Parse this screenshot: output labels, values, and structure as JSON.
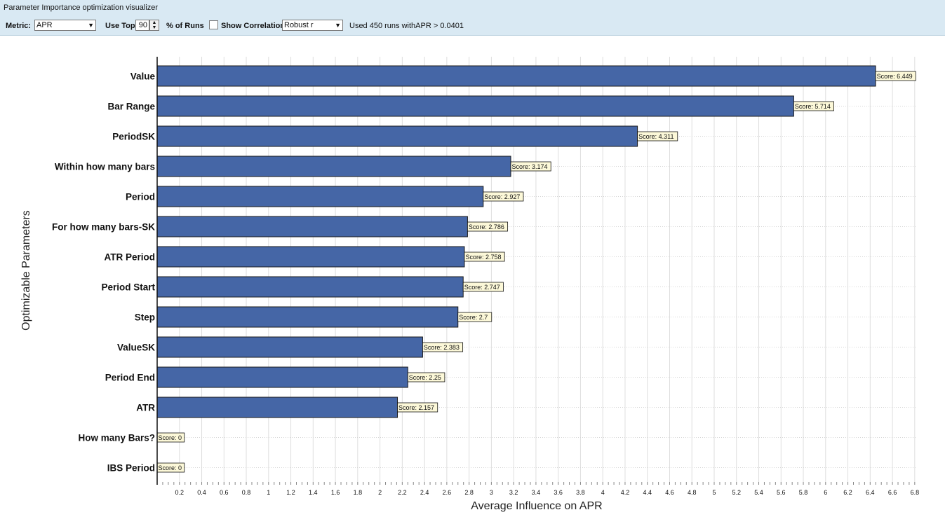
{
  "window": {
    "title": "Parameter Importance optimization visualizer"
  },
  "toolbar": {
    "metric_label": "Metric:",
    "metric_value": "APR",
    "use_top_label": "Use Top",
    "use_top_value": "90",
    "pct_runs_label": "% of Runs",
    "show_corr_label": "Show Correlation",
    "show_corr_checked": false,
    "corr_method": "Robust r",
    "status_text": "Used 450 runs withAPR > 0.0401"
  },
  "icons": {
    "dropdown": "chevron-down-icon",
    "spin_up": "arrow-up-icon",
    "spin_down": "arrow-down-icon"
  },
  "colors": {
    "bar": "#4566a6",
    "bar_border": "#1a1a1a",
    "score_bg": "#fcf8d8",
    "toolbar_bg": "#d9e9f3"
  },
  "chart_data": {
    "type": "bar",
    "orientation": "horizontal",
    "xlabel": "Average Influence on APR",
    "ylabel": "Optimizable Parameters",
    "xlim": [
      0,
      6.8
    ],
    "xticks": [
      "0.2",
      "0.4",
      "0.6",
      "0.8",
      "1",
      "1.2",
      "1.4",
      "1.6",
      "1.8",
      "2",
      "2.2",
      "2.4",
      "2.6",
      "2.8",
      "3",
      "3.2",
      "3.4",
      "3.6",
      "3.8",
      "4",
      "4.2",
      "4.4",
      "4.6",
      "4.8",
      "5",
      "5.2",
      "5.4",
      "5.6",
      "5.8",
      "6",
      "6.2",
      "6.4",
      "6.6",
      "6.8"
    ],
    "grid": true,
    "categories": [
      "Value",
      "Bar Range",
      "PeriodSK",
      "Within how many bars",
      "Period",
      "For how many bars-SK",
      "ATR Period",
      "Period Start",
      "Step",
      "ValueSK",
      "Period End",
      "ATR",
      "How many Bars?",
      "IBS Period"
    ],
    "values": [
      6.449,
      5.714,
      4.311,
      3.174,
      2.927,
      2.786,
      2.758,
      2.747,
      2.7,
      2.383,
      2.25,
      2.157,
      0,
      0
    ],
    "data_labels": [
      "Score: 6.449",
      "Score: 5.714",
      "Score: 4.311",
      "Score: 3.174",
      "Score: 2.927",
      "Score: 2.786",
      "Score: 2.758",
      "Score: 2.747",
      "Score: 2.7",
      "Score: 2.383",
      "Score: 2.25",
      "Score: 2.157",
      "Score: 0",
      "Score: 0"
    ]
  }
}
